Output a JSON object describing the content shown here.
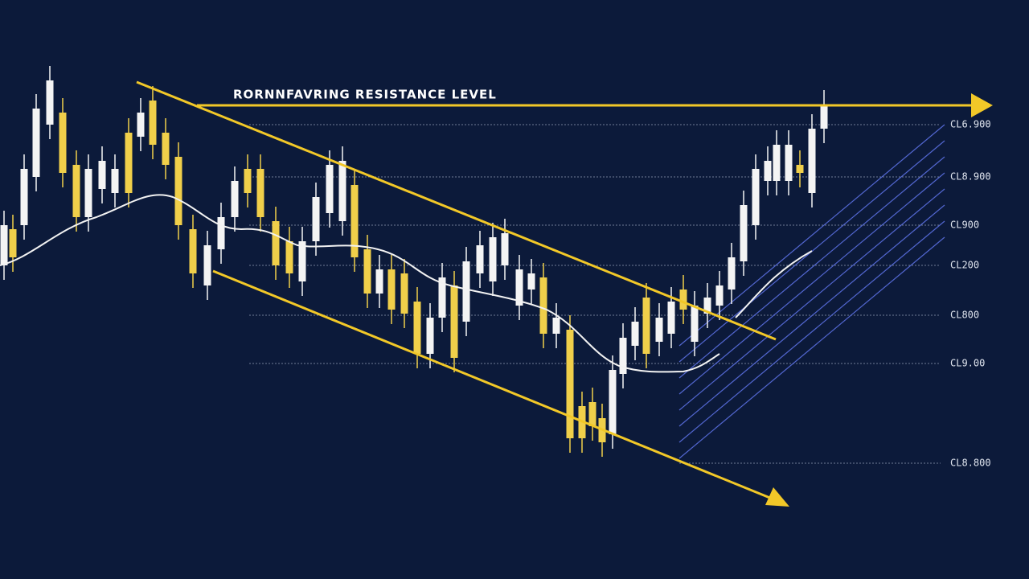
{
  "annotation": "RORNNFAVRING RESISTANCE LEVEL",
  "price_levels": [
    "CL6.900",
    "CL8.900",
    "CL900",
    "CL200",
    "CL800",
    "CL9.00",
    "CL8.800"
  ]
}
